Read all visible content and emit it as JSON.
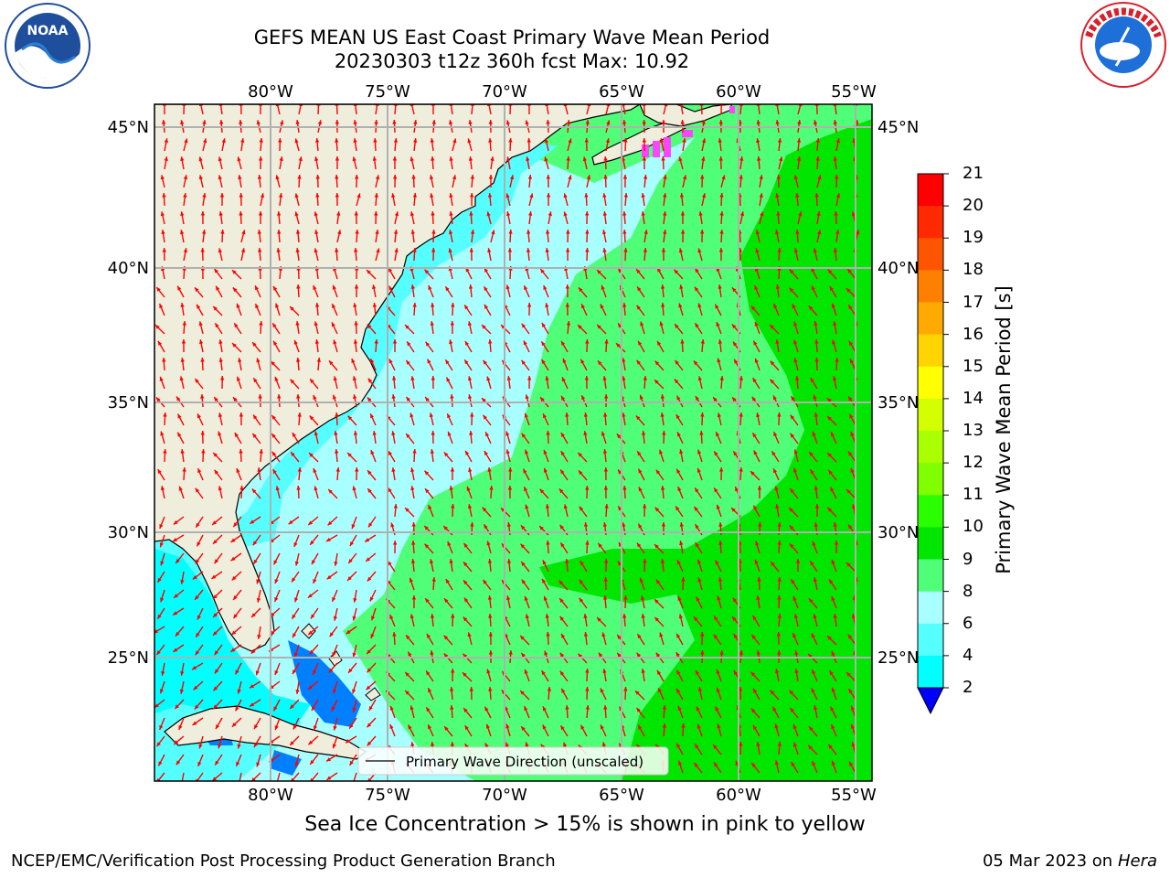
{
  "title_line1": "GEFS MEAN US East Coast Primary Wave Mean Period",
  "title_line2": "20230303 t12z 360h fcst   Max: 10.92",
  "subtitle": "Sea Ice Concentration > 15% is shown in pink to yellow",
  "footer_left": "NCEP/EMC/Verification Post Processing Product Generation Branch",
  "footer_right_date": "05 Mar 2023 on",
  "footer_right_host": "Hera",
  "legend_label": "Primary Wave Direction (unscaled)",
  "logos": {
    "left": "NOAA",
    "right": "NATIONAL WEATHER SERVICE"
  },
  "map": {
    "lon_labels": [
      "80°W",
      "75°W",
      "70°W",
      "65°W",
      "60°W",
      "55°W"
    ],
    "lat_labels": [
      "45°N",
      "40°N",
      "35°N",
      "30°N",
      "25°N"
    ]
  },
  "colorbar": {
    "title": "Primary Wave Mean Period [s]",
    "ticks": [
      "21",
      "20",
      "19",
      "18",
      "17",
      "16",
      "15",
      "14",
      "13",
      "12",
      "11",
      "10",
      "9",
      "8",
      "6",
      "4",
      "2"
    ],
    "colors": [
      "#ff0000",
      "#ff2a00",
      "#ff5500",
      "#ff7f00",
      "#ffaa00",
      "#ffd400",
      "#ffff00",
      "#d4ff00",
      "#aaff00",
      "#7fff00",
      "#2aff00",
      "#00e600",
      "#50ff78",
      "#a8ffff",
      "#55ffff",
      "#00ffff",
      "#00e0ff",
      "#0080ff"
    ],
    "extend_color": "#0000ff"
  },
  "colors": {
    "land": "#efeedc",
    "arrow": "#ff0000",
    "grid": "#b0b0b0"
  }
}
